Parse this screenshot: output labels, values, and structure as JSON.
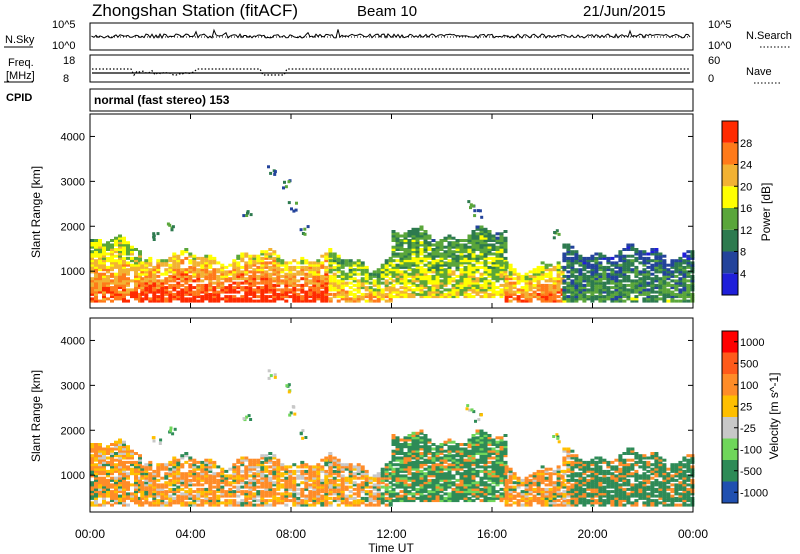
{
  "header": {
    "station": "Zhongshan Station (fitACF)",
    "beam": "Beam 10",
    "date": "21/Jun/2015"
  },
  "noise_panel": {
    "left_label": "N.Sky",
    "left_ticks": [
      "10^5",
      "10^0"
    ],
    "right_ticks": [
      "10^5",
      "10^0"
    ],
    "right_label": "N.Search"
  },
  "freq_panel": {
    "left_label_line1": "Freq.",
    "left_label_line2": "[MHz]",
    "left_ticks": [
      "18",
      "8"
    ],
    "right_ticks": [
      "60",
      "0"
    ],
    "right_label": "Nave"
  },
  "cpid": {
    "label": "CPID",
    "text": "normal (fast stereo) 153"
  },
  "colors": {
    "power_scale": [
      "#1f1fd9",
      "#23439b",
      "#2d7a4f",
      "#5aa63a",
      "#ffff00",
      "#f2b233",
      "#ff7a1a",
      "#ff2a00"
    ],
    "velocity_scale": [
      "#ff0000",
      "#ff5a1a",
      "#ff8c28",
      "#ffbf00",
      "#c8c8c8",
      "#6fd65a",
      "#2e8b57",
      "#2050b0"
    ]
  },
  "chart_data": [
    {
      "type": "heatmap",
      "name": "power",
      "ylabel": "Slant Range [km]",
      "xlabel": "Time UT",
      "x_ticks": [
        "00:00",
        "04:00",
        "08:00",
        "12:00",
        "16:00",
        "20:00",
        "00:00"
      ],
      "y_ticks": [
        "1000",
        "2000",
        "3000",
        "4000"
      ],
      "ylim": [
        180,
        4500
      ],
      "xlim_hours": [
        0,
        24
      ],
      "colorbar_label": "Power [dB]",
      "colorbar_ticks": [
        "4",
        "8",
        "12",
        "16",
        "20",
        "24",
        "28"
      ],
      "colorbar_range": [
        0,
        30
      ],
      "coverage_description_regions": [
        {
          "from_h": 0.0,
          "to_h": 2.0,
          "range_km": [
            300,
            1600
          ],
          "level": "high"
        },
        {
          "from_h": 2.0,
          "to_h": 9.5,
          "range_km": [
            300,
            1300
          ],
          "level": "very-high"
        },
        {
          "from_h": 9.5,
          "to_h": 12.0,
          "range_km": [
            300,
            1200
          ],
          "level": "mixed"
        },
        {
          "from_h": 12.0,
          "to_h": 16.5,
          "range_km": [
            400,
            1800
          ],
          "level": "medium"
        },
        {
          "from_h": 16.5,
          "to_h": 18.8,
          "range_km": [
            300,
            1100
          ],
          "level": "high"
        },
        {
          "from_h": 18.8,
          "to_h": 24.0,
          "range_km": [
            300,
            1400
          ],
          "level": "low"
        }
      ]
    },
    {
      "type": "heatmap",
      "name": "velocity",
      "ylabel": "Slant Range [km]",
      "xlabel": "Time UT",
      "x_ticks": [
        "00:00",
        "04:00",
        "08:00",
        "12:00",
        "16:00",
        "20:00",
        "00:00"
      ],
      "y_ticks": [
        "1000",
        "2000",
        "3000",
        "4000"
      ],
      "ylim": [
        180,
        4500
      ],
      "xlim_hours": [
        0,
        24
      ],
      "colorbar_label": "Velocity [m s^-1]",
      "colorbar_ticks": [
        "1000",
        "500",
        "100",
        "25",
        "-25",
        "-100",
        "-500",
        "-1000"
      ]
    }
  ]
}
